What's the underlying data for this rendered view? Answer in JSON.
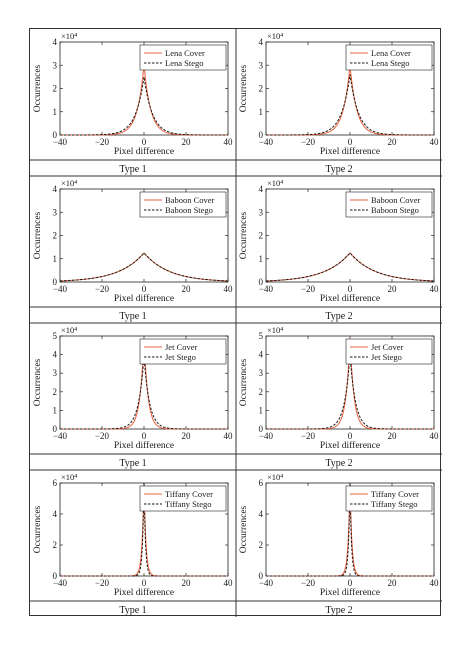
{
  "panel_labels": [
    "Type 1",
    "Type 2"
  ],
  "colors": {
    "cover": "#e8603c",
    "stego": "#1a1a1a"
  },
  "chart_data": [
    {
      "type": "line",
      "image": "Lena",
      "panel_label": "Type 1",
      "xlabel": "Pixel difference",
      "ylabel": "Occurrences",
      "y_scale_label": "×10⁴",
      "xlim": [
        -40,
        40
      ],
      "ylim": [
        0,
        4
      ],
      "xticks": [
        -40,
        -20,
        0,
        20,
        40
      ],
      "yticks": [
        0,
        1,
        2,
        3,
        4
      ],
      "legend_position": "top-right",
      "series": [
        {
          "name": "Lena Cover",
          "style": "solid",
          "peak": 3.0,
          "width": 3.2
        },
        {
          "name": "Lena Stego",
          "style": "dashed",
          "peak": 2.5,
          "width": 4.0
        }
      ]
    },
    {
      "type": "line",
      "image": "Lena",
      "panel_label": "Type 2",
      "xlabel": "Pixel difference",
      "ylabel": "Occurrences",
      "y_scale_label": "×10⁴",
      "xlim": [
        -40,
        40
      ],
      "ylim": [
        0,
        4
      ],
      "xticks": [
        -40,
        -20,
        0,
        20,
        40
      ],
      "yticks": [
        0,
        1,
        2,
        3,
        4
      ],
      "legend_position": "top-right",
      "series": [
        {
          "name": "Lena Cover",
          "style": "solid",
          "peak": 3.0,
          "width": 3.2
        },
        {
          "name": "Lena Stego",
          "style": "dashed",
          "peak": 2.6,
          "width": 4.0
        }
      ]
    },
    {
      "type": "line",
      "image": "Baboon",
      "panel_label": "Type 1",
      "xlabel": "Pixel difference",
      "ylabel": "Occurrences",
      "y_scale_label": "×10⁴",
      "xlim": [
        -40,
        40
      ],
      "ylim": [
        0,
        4
      ],
      "xticks": [
        -40,
        -20,
        0,
        20,
        40
      ],
      "yticks": [
        0,
        1,
        2,
        3,
        4
      ],
      "legend_position": "top-right",
      "series": [
        {
          "name": "Baboon Cover",
          "style": "solid",
          "peak": 1.25,
          "width": 12
        },
        {
          "name": "Baboon Stego",
          "style": "dashed",
          "peak": 1.25,
          "width": 12
        }
      ]
    },
    {
      "type": "line",
      "image": "Baboon",
      "panel_label": "Type 2",
      "xlabel": "Pixel difference",
      "ylabel": "Occurrences",
      "y_scale_label": "×10⁴",
      "xlim": [
        -40,
        40
      ],
      "ylim": [
        0,
        4
      ],
      "xticks": [
        -40,
        -20,
        0,
        20,
        40
      ],
      "yticks": [
        0,
        1,
        2,
        3,
        4
      ],
      "legend_position": "top-right",
      "series": [
        {
          "name": "Baboon Cover",
          "style": "solid",
          "peak": 1.25,
          "width": 12
        },
        {
          "name": "Baboon Stego",
          "style": "dashed",
          "peak": 1.25,
          "width": 12
        }
      ]
    },
    {
      "type": "line",
      "image": "Jet",
      "panel_label": "Type 1",
      "xlabel": "Pixel difference",
      "ylabel": "Occurrences",
      "y_scale_label": "×10⁴",
      "xlim": [
        -40,
        40
      ],
      "ylim": [
        0,
        5
      ],
      "xticks": [
        -40,
        -20,
        0,
        20,
        40
      ],
      "yticks": [
        0,
        1,
        2,
        3,
        4,
        5
      ],
      "legend_position": "top-right",
      "series": [
        {
          "name": "Jet Cover",
          "style": "solid",
          "peak": 4.9,
          "width": 1.9
        },
        {
          "name": "Jet Stego",
          "style": "dashed",
          "peak": 3.9,
          "width": 2.6
        }
      ]
    },
    {
      "type": "line",
      "image": "Jet",
      "panel_label": "Type 2",
      "xlabel": "Pixel difference",
      "ylabel": "Occurrences",
      "y_scale_label": "×10⁴",
      "xlim": [
        -40,
        40
      ],
      "ylim": [
        0,
        5
      ],
      "xticks": [
        -40,
        -20,
        0,
        20,
        40
      ],
      "yticks": [
        0,
        1,
        2,
        3,
        4,
        5
      ],
      "legend_position": "top-right",
      "series": [
        {
          "name": "Jet Cover",
          "style": "solid",
          "peak": 4.9,
          "width": 1.9
        },
        {
          "name": "Jet Stego",
          "style": "dashed",
          "peak": 4.0,
          "width": 2.6
        }
      ]
    },
    {
      "type": "line",
      "image": "Tiffany",
      "panel_label": "Type 1",
      "xlabel": "Pixel difference",
      "ylabel": "Occurrences",
      "y_scale_label": "×10⁴",
      "xlim": [
        -40,
        40
      ],
      "ylim": [
        0,
        6
      ],
      "xticks": [
        -40,
        -20,
        0,
        20,
        40
      ],
      "yticks": [
        0,
        2,
        4,
        6
      ],
      "legend_position": "top-right",
      "series": [
        {
          "name": "Tiffany Cover",
          "style": "solid",
          "peak": 6.0,
          "width": 0.9
        },
        {
          "name": "Tiffany Stego",
          "style": "dashed",
          "peak": 6.0,
          "width": 0.7
        }
      ]
    },
    {
      "type": "line",
      "image": "Tiffany",
      "panel_label": "Type 2",
      "xlabel": "Pixel difference",
      "ylabel": "Occurrences",
      "y_scale_label": "×10⁴",
      "xlim": [
        -40,
        40
      ],
      "ylim": [
        0,
        6
      ],
      "xticks": [
        -40,
        -20,
        0,
        20,
        40
      ],
      "yticks": [
        0,
        2,
        4,
        6
      ],
      "legend_position": "top-right",
      "series": [
        {
          "name": "Tiffany Cover",
          "style": "solid",
          "peak": 6.0,
          "width": 0.9
        },
        {
          "name": "Tiffany Stego",
          "style": "dashed",
          "peak": 6.0,
          "width": 0.7
        }
      ]
    }
  ]
}
